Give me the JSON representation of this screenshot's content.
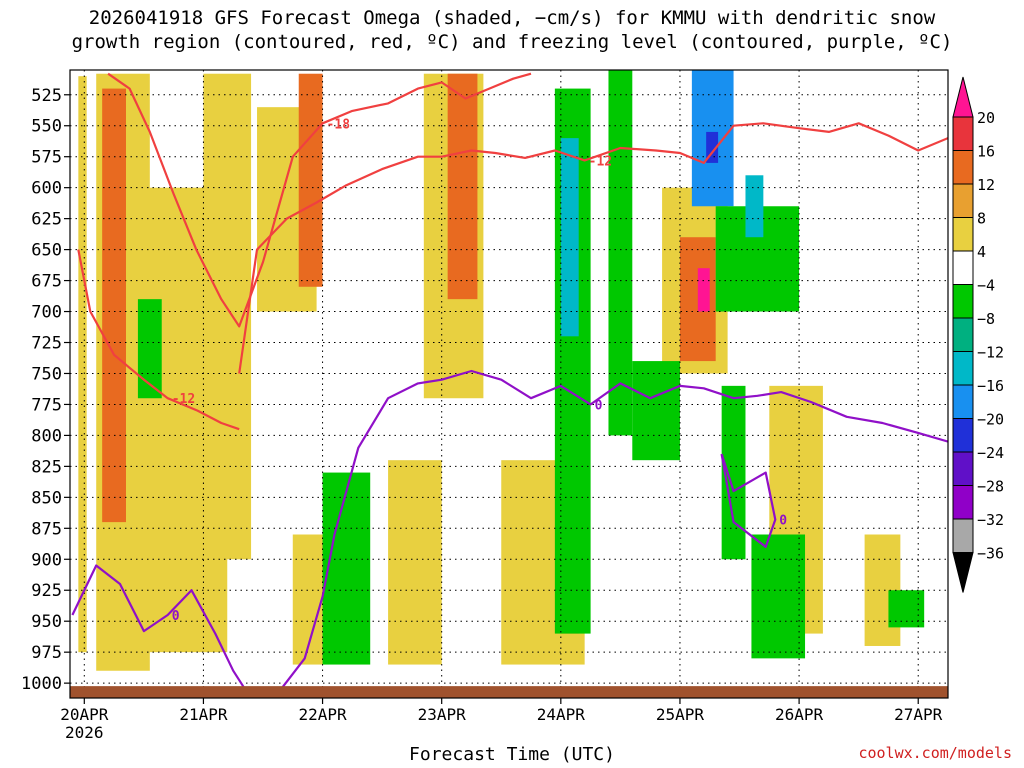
{
  "title_line1": "2026041918 GFS Forecast Omega (shaded, −cm/s) for KMMU with dendritic snow",
  "title_line2": "growth region (contoured, red, ºC) and freezing level (contoured, purple, ºC)",
  "credit": "coolwx.com/models",
  "chart_data": {
    "type": "heatmap",
    "xlabel": "Forecast Time (UTC)",
    "ylabel": "Pressure (hPa)",
    "x_ticks": [
      "20APR",
      "21APR",
      "22APR",
      "23APR",
      "24APR",
      "25APR",
      "26APR",
      "27APR"
    ],
    "x_tick_sub": "2026",
    "x_day_index": [
      0,
      1,
      2,
      3,
      4,
      5,
      6,
      7
    ],
    "x_range": [
      -0.12,
      7.25
    ],
    "y_ticks": [
      525,
      550,
      575,
      600,
      625,
      650,
      675,
      700,
      725,
      750,
      775,
      800,
      825,
      850,
      875,
      900,
      925,
      950,
      975,
      1000
    ],
    "y_range": [
      505,
      1012
    ],
    "colorbar": {
      "labels": [
        "20",
        "16",
        "12",
        "8",
        "4",
        "−4",
        "−8",
        "−12",
        "−16",
        "−20",
        "−24",
        "−28",
        "−32",
        "−36"
      ],
      "colors": [
        "#ff1493",
        "#e8343c",
        "#e86a20",
        "#e8a030",
        "#e8d040",
        "#ffffff",
        "#00c800",
        "#00b080",
        "#00b8c8",
        "#1890f0",
        "#2030d8",
        "#6010c8",
        "#9000c8",
        "#a8a8a8",
        "#000000"
      ]
    },
    "series": [
      {
        "name": "Snow growth −18 °C",
        "color": "#f04040",
        "label": "-18",
        "x": [
          0.2,
          0.38,
          0.55,
          0.75,
          0.94,
          1.15,
          1.3,
          1.5,
          1.75,
          2.0,
          2.25,
          2.55,
          2.8,
          3.0,
          3.2,
          3.4,
          3.6,
          3.75
        ],
        "p": [
          508,
          520,
          555,
          605,
          650,
          690,
          712,
          660,
          575,
          548,
          538,
          532,
          520,
          515,
          528,
          520,
          512,
          508
        ]
      },
      {
        "name": "Snow growth −12 °C (upper)",
        "color": "#f04040",
        "label": "-12",
        "x": [
          1.3,
          1.45,
          1.7,
          1.95,
          2.2,
          2.5,
          2.8,
          3.0,
          3.25,
          3.45,
          3.7,
          3.95,
          4.2,
          4.5,
          4.8,
          5.0,
          5.2,
          5.45,
          5.7,
          6.0,
          6.25,
          6.5,
          6.75,
          7.0,
          7.25
        ],
        "p": [
          750,
          650,
          625,
          612,
          598,
          585,
          575,
          575,
          570,
          572,
          576,
          570,
          578,
          568,
          570,
          572,
          580,
          550,
          548,
          552,
          555,
          548,
          558,
          570,
          560
        ]
      },
      {
        "name": "Snow growth −12 °C (lower)",
        "color": "#f04040",
        "label": "-12",
        "x": [
          -0.05,
          0.05,
          0.25,
          0.5,
          0.7,
          0.95,
          1.15,
          1.3
        ],
        "p": [
          650,
          700,
          735,
          755,
          770,
          780,
          790,
          795
        ]
      },
      {
        "name": "Freezing level 0 °C (left)",
        "color": "#9010c8",
        "label": "0",
        "x": [
          -0.1,
          0.1,
          0.3,
          0.5,
          0.7,
          0.9,
          1.1,
          1.25,
          1.35
        ],
        "p": [
          945,
          905,
          920,
          958,
          945,
          925,
          960,
          990,
          1005
        ]
      },
      {
        "name": "Freezing level 0 °C (main)",
        "color": "#9010c8",
        "label": "0",
        "x": [
          1.65,
          1.85,
          2.0,
          2.1,
          2.3,
          2.55,
          2.8,
          3.0,
          3.25,
          3.5,
          3.75,
          4.0,
          4.25,
          4.5,
          4.75,
          5.0,
          5.2,
          5.45,
          5.65,
          5.85,
          6.1,
          6.4,
          6.7,
          7.0,
          7.25
        ],
        "p": [
          1005,
          980,
          930,
          880,
          810,
          770,
          758,
          755,
          748,
          755,
          770,
          760,
          775,
          758,
          770,
          760,
          762,
          770,
          768,
          765,
          773,
          785,
          790,
          798,
          805
        ]
      },
      {
        "name": "Freezing level 0 °C (closed 25APR)",
        "color": "#9010c8",
        "label": "0",
        "x": [
          5.35,
          5.45,
          5.72,
          5.8,
          5.72,
          5.45,
          5.35
        ],
        "p": [
          815,
          845,
          830,
          868,
          890,
          870,
          815
        ]
      }
    ],
    "omega_regions": [
      {
        "value": 6,
        "x": [
          -0.05,
          0.02
        ],
        "p": [
          510,
          975
        ]
      },
      {
        "value": 6,
        "x": [
          0.1,
          0.55
        ],
        "p": [
          508,
          990
        ]
      },
      {
        "value": 12,
        "x": [
          0.15,
          0.35
        ],
        "p": [
          520,
          870
        ]
      },
      {
        "value": 6,
        "x": [
          0.5,
          1.2
        ],
        "p": [
          600,
          975
        ]
      },
      {
        "value": 6,
        "x": [
          1.0,
          1.4
        ],
        "p": [
          508,
          900
        ]
      },
      {
        "value": 6,
        "x": [
          1.45,
          1.95
        ],
        "p": [
          535,
          700
        ]
      },
      {
        "value": 6,
        "x": [
          1.75,
          2.05
        ],
        "p": [
          880,
          985
        ]
      },
      {
        "value": 12,
        "x": [
          1.8,
          2.0
        ],
        "p": [
          508,
          680
        ]
      },
      {
        "value": 6,
        "x": [
          2.55,
          3.0
        ],
        "p": [
          820,
          985
        ]
      },
      {
        "value": 6,
        "x": [
          2.85,
          3.35
        ],
        "p": [
          508,
          770
        ]
      },
      {
        "value": 12,
        "x": [
          3.05,
          3.3
        ],
        "p": [
          508,
          690
        ]
      },
      {
        "value": 6,
        "x": [
          3.5,
          4.2
        ],
        "p": [
          820,
          985
        ]
      },
      {
        "value": 12,
        "x": [
          4.0,
          4.15
        ],
        "p": [
          880,
          960
        ]
      },
      {
        "value": 6,
        "x": [
          4.85,
          5.4
        ],
        "p": [
          600,
          750
        ]
      },
      {
        "value": 12,
        "x": [
          5.0,
          5.3
        ],
        "p": [
          640,
          740
        ]
      },
      {
        "value": 20,
        "x": [
          5.15,
          5.25
        ],
        "p": [
          665,
          700
        ]
      },
      {
        "value": 6,
        "x": [
          5.75,
          6.2
        ],
        "p": [
          760,
          960
        ]
      },
      {
        "value": 6,
        "x": [
          6.55,
          6.85
        ],
        "p": [
          880,
          970
        ]
      },
      {
        "value": -6,
        "x": [
          0.45,
          0.65
        ],
        "p": [
          690,
          770
        ]
      },
      {
        "value": -6,
        "x": [
          2.0,
          2.4
        ],
        "p": [
          830,
          985
        ]
      },
      {
        "value": -6,
        "x": [
          3.95,
          4.25
        ],
        "p": [
          520,
          960
        ]
      },
      {
        "value": -12,
        "x": [
          4.0,
          4.15
        ],
        "p": [
          560,
          720
        ]
      },
      {
        "value": -6,
        "x": [
          4.4,
          4.6
        ],
        "p": [
          500,
          800
        ]
      },
      {
        "value": -6,
        "x": [
          4.6,
          5.0
        ],
        "p": [
          740,
          820
        ]
      },
      {
        "value": -18,
        "x": [
          5.1,
          5.45
        ],
        "p": [
          505,
          615
        ]
      },
      {
        "value": -22,
        "x": [
          5.22,
          5.32
        ],
        "p": [
          555,
          580
        ]
      },
      {
        "value": -6,
        "x": [
          5.3,
          6.0
        ],
        "p": [
          615,
          700
        ]
      },
      {
        "value": -14,
        "x": [
          5.55,
          5.7
        ],
        "p": [
          590,
          640
        ]
      },
      {
        "value": -6,
        "x": [
          5.35,
          5.55
        ],
        "p": [
          760,
          900
        ]
      },
      {
        "value": -6,
        "x": [
          5.6,
          6.05
        ],
        "p": [
          880,
          980
        ]
      },
      {
        "value": -6,
        "x": [
          6.75,
          7.05
        ],
        "p": [
          925,
          955
        ]
      }
    ]
  }
}
